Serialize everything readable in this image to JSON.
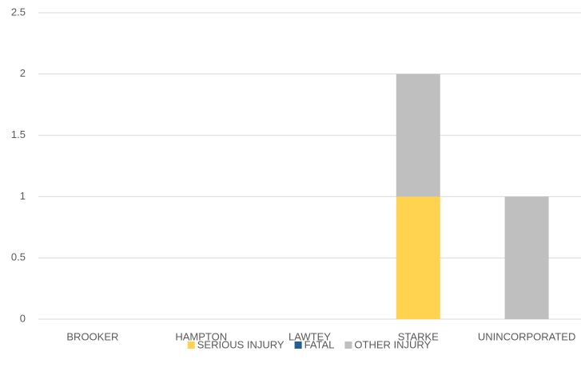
{
  "chart_data": {
    "type": "bar",
    "stacked": true,
    "categories": [
      "BROOKER",
      "HAMPTON",
      "LAWTEY",
      "STARKE",
      "UNINCORPORATED"
    ],
    "series": [
      {
        "name": "SERIOUS INJURY",
        "color": "#ffd34f",
        "values": [
          0,
          0,
          0,
          1,
          0
        ]
      },
      {
        "name": "FATAL",
        "color": "#255e91",
        "values": [
          0,
          0,
          0,
          0,
          0
        ]
      },
      {
        "name": "OTHER INJURY",
        "color": "#bfbfbf",
        "values": [
          0,
          0,
          0,
          1,
          1
        ]
      }
    ],
    "ylim": [
      0,
      2.5
    ],
    "yticks": [
      0,
      0.5,
      1,
      1.5,
      2,
      2.5
    ],
    "grid": true,
    "legend": "bottom"
  }
}
